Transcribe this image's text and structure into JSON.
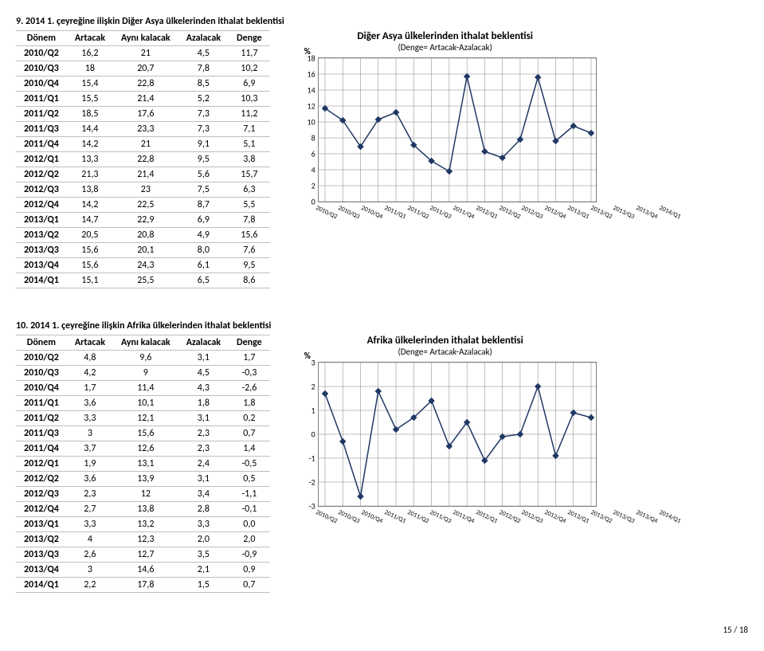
{
  "sections": [
    {
      "title": "9. 2014 1. çeyreğine ilişkin Diğer Asya ülkelerinden ithalat beklentisi",
      "chart_title": "Diğer Asya ülkelerinden ithalat beklentisi",
      "chart_sub": "(Denge= Artacak-Azalacak)",
      "headers": [
        "Dönem",
        "Artacak",
        "Aynı kalacak",
        "Azalacak",
        "Denge"
      ],
      "periods": [
        "2010/Q2",
        "2010/Q3",
        "2010/Q4",
        "2011/Q1",
        "2011/Q2",
        "2011/Q3",
        "2011/Q4",
        "2012/Q1",
        "2012/Q2",
        "2012/Q3",
        "2012/Q4",
        "2013/Q1",
        "2013/Q2",
        "2013/Q3",
        "2013/Q4",
        "2014/Q1"
      ],
      "rows": [
        [
          "16,2",
          "21",
          "4,5",
          "11,7"
        ],
        [
          "18",
          "20,7",
          "7,8",
          "10,2"
        ],
        [
          "15,4",
          "22,8",
          "8,5",
          "6,9"
        ],
        [
          "15,5",
          "21,4",
          "5,2",
          "10,3"
        ],
        [
          "18,5",
          "17,6",
          "7,3",
          "11,2"
        ],
        [
          "14,4",
          "23,3",
          "7,3",
          "7,1"
        ],
        [
          "14,2",
          "21",
          "9,1",
          "5,1"
        ],
        [
          "13,3",
          "22,8",
          "9,5",
          "3,8"
        ],
        [
          "21,3",
          "21,4",
          "5,6",
          "15,7"
        ],
        [
          "13,8",
          "23",
          "7,5",
          "6,3"
        ],
        [
          "14,2",
          "22,5",
          "8,7",
          "5,5"
        ],
        [
          "14,7",
          "22,9",
          "6,9",
          "7,8"
        ],
        [
          "20,5",
          "20,8",
          "4,9",
          "15,6"
        ],
        [
          "15,6",
          "20,1",
          "8,0",
          "7,6"
        ],
        [
          "15,6",
          "24,3",
          "6,1",
          "9,5"
        ],
        [
          "15,1",
          "25,5",
          "6,5",
          "8,6"
        ]
      ],
      "denge_vals": [
        11.7,
        10.2,
        6.9,
        10.3,
        11.2,
        7.1,
        5.1,
        3.8,
        15.7,
        6.3,
        5.5,
        7.8,
        15.6,
        7.6,
        9.5,
        8.6
      ],
      "ymin": 0,
      "ymax": 18,
      "ystep": 2,
      "series_color": "#203864",
      "bg": "#ffffff",
      "grid_color": "#808080"
    },
    {
      "title": "10. 2014 1. çeyreğine ilişkin Afrika ülkelerinden ithalat beklentisi",
      "chart_title": "Afrika ülkelerinden ithalat beklentisi",
      "chart_sub": "(Denge= Artacak-Azalacak)",
      "headers": [
        "Dönem",
        "Artacak",
        "Aynı kalacak",
        "Azalacak",
        "Denge"
      ],
      "periods": [
        "2010/Q2",
        "2010/Q3",
        "2010/Q4",
        "2011/Q1",
        "2011/Q2",
        "2011/Q3",
        "2011/Q4",
        "2012/Q1",
        "2012/Q2",
        "2012/Q3",
        "2012/Q4",
        "2013/Q1",
        "2013/Q2",
        "2013/Q3",
        "2013/Q4",
        "2014/Q1"
      ],
      "rows": [
        [
          "4,8",
          "9,6",
          "3,1",
          "1,7"
        ],
        [
          "4,2",
          "9",
          "4,5",
          "-0,3"
        ],
        [
          "1,7",
          "11,4",
          "4,3",
          "-2,6"
        ],
        [
          "3,6",
          "10,1",
          "1,8",
          "1,8"
        ],
        [
          "3,3",
          "12,1",
          "3,1",
          "0,2"
        ],
        [
          "3",
          "15,6",
          "2,3",
          "0,7"
        ],
        [
          "3,7",
          "12,6",
          "2,3",
          "1,4"
        ],
        [
          "1,9",
          "13,1",
          "2,4",
          "-0,5"
        ],
        [
          "3,6",
          "13,9",
          "3,1",
          "0,5"
        ],
        [
          "2,3",
          "12",
          "3,4",
          "-1,1"
        ],
        [
          "2,7",
          "13,8",
          "2,8",
          "-0,1"
        ],
        [
          "3,3",
          "13,2",
          "3,3",
          "0,0"
        ],
        [
          "4",
          "12,3",
          "2,0",
          "2,0"
        ],
        [
          "2,6",
          "12,7",
          "3,5",
          "-0,9"
        ],
        [
          "3",
          "14,6",
          "2,1",
          "0,9"
        ],
        [
          "2,2",
          "17,8",
          "1,5",
          "0,7"
        ]
      ],
      "denge_vals": [
        1.7,
        -0.3,
        -2.6,
        1.8,
        0.2,
        0.7,
        1.4,
        -0.5,
        0.5,
        -1.1,
        -0.1,
        0.0,
        2.0,
        -0.9,
        0.9,
        0.7
      ],
      "ymin": -3,
      "ymax": 3,
      "ystep": 1,
      "series_color": "#203864",
      "bg": "#ffffff",
      "grid_color": "#808080"
    }
  ],
  "footer": "15 / 18",
  "pct_label": "%"
}
